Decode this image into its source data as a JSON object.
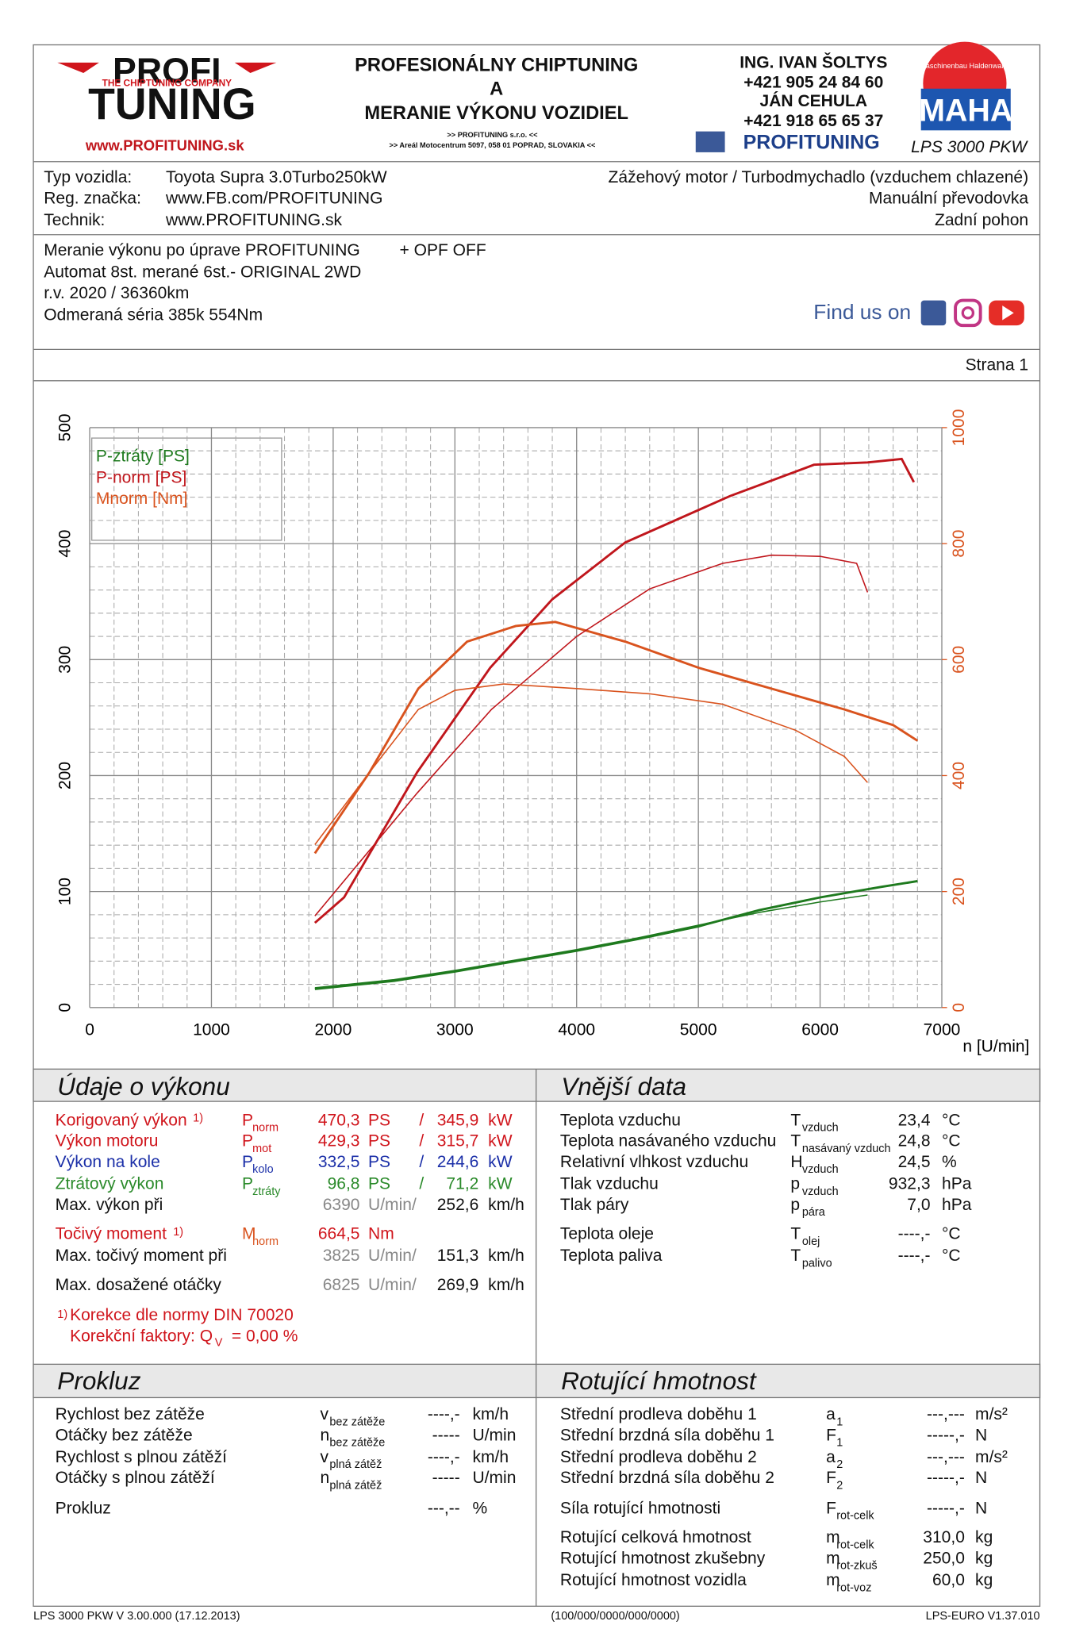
{
  "header": {
    "logo_top": "PROFI",
    "logo_tagline": "THE CHIPTUNING COMPANY",
    "logo_bottom": "TUNING",
    "logo_url": "www.PROFITUNING.sk",
    "title": [
      "PROFESIONÁLNY CHIPTUNING",
      "A",
      "MERANIE VÝKONU VOZIDIEL"
    ],
    "company": ">> PROFITUNING s.r.o. <<",
    "address": ">> Areál Motocentrum 5097, 058 01 POPRAD, SLOVAKIA <<",
    "contacts": [
      "ING. IVAN ŠOLTYS",
      "+421 905 24 84 60",
      "JÁN CEHULA",
      "+421 918 65 65 37"
    ],
    "facebook": "PROFITUNING",
    "maha_ring": "Maschinenbau Haldenwang",
    "maha": "MAHA",
    "model": "LPS 3000 PKW"
  },
  "vehicle": {
    "rows": [
      {
        "label": "Typ vozidla:",
        "value": "Toyota Supra 3.0Turbo250kW",
        "right": "Zážehový motor / Turbodmychadlo (vzduchem chlazené)"
      },
      {
        "label": "Reg. značka:",
        "value": "www.FB.com/PROFITUNING",
        "right": "Manuální převodovka"
      },
      {
        "label": "Technik:",
        "value": "www.PROFITUNING.sk",
        "right": "Zadní pohon"
      }
    ]
  },
  "notes": {
    "lines": [
      "Meranie výkonu po úprave PROFITUNING",
      "Automat 8st. merané 6st.- ORIGINAL 2WD",
      "r.v. 2020 / 36360km",
      "Odmeraná séria 385k 554Nm"
    ],
    "extra": "+ OPF OFF",
    "find_us": "Find us on"
  },
  "page_label": "Strana 1",
  "chart_data": {
    "type": "line",
    "xlabel": "n [U/min]",
    "xlim": [
      0,
      7000
    ],
    "xticks": [
      0,
      1000,
      2000,
      3000,
      4000,
      5000,
      6000,
      7000
    ],
    "ylim": [
      0,
      500
    ],
    "yticks": [
      0,
      100,
      200,
      300,
      400,
      500
    ],
    "y2lim": [
      0,
      1000
    ],
    "y2ticks": [
      0,
      200,
      400,
      600,
      800,
      1000
    ],
    "y2color": "#d9531e",
    "grid": true,
    "series": [
      {
        "name": "P-ztráty [PS]",
        "color": "#1e7a1e",
        "linewidth": 2.2,
        "x": [
          1850,
          2500,
          3000,
          3500,
          4000,
          4500,
          5000,
          5500,
          6000,
          6500,
          6800
        ],
        "values": [
          16,
          23,
          31,
          40,
          49,
          59,
          70,
          84,
          95,
          104,
          109
        ]
      },
      {
        "name": "P-norm [PS]",
        "color": "#c0161c",
        "linewidth": 2.2,
        "x": [
          1850,
          2090,
          2690,
          3290,
          3800,
          4400,
          5260,
          5950,
          6390,
          6670,
          6770
        ],
        "values": [
          73,
          95,
          203,
          293,
          352,
          401,
          441,
          468,
          470,
          473,
          453
        ]
      },
      {
        "name": "Mnorm [Nm]",
        "color": "#d9531e",
        "axis": "y2",
        "linewidth": 2.2,
        "x": [
          1850,
          2300,
          2700,
          3100,
          3500,
          3825,
          4400,
          5000,
          5600,
          6200,
          6600,
          6800
        ],
        "values": [
          266,
          406,
          550,
          631,
          658,
          665,
          631,
          586,
          550,
          514,
          487,
          460
        ]
      },
      {
        "color": "#1e7a1e",
        "linewidth": 1.2,
        "x": [
          1850,
          2500,
          3000,
          3500,
          4000,
          4500,
          5000,
          5500,
          6000,
          6390
        ],
        "values": [
          17,
          24,
          32,
          41,
          50,
          60,
          71,
          82,
          91,
          97
        ]
      },
      {
        "color": "#c0161c",
        "linewidth": 1.2,
        "x": [
          1850,
          2690,
          3300,
          4000,
          4600,
          5200,
          5600,
          6000,
          6300,
          6390
        ],
        "values": [
          79,
          185,
          257,
          320,
          361,
          383,
          390,
          389,
          383,
          358
        ]
      },
      {
        "color": "#d9531e",
        "axis": "y2",
        "linewidth": 1.2,
        "x": [
          1850,
          2300,
          2700,
          3000,
          3400,
          4000,
          4600,
          5200,
          5800,
          6200,
          6390
        ],
        "values": [
          281,
          406,
          514,
          547,
          558,
          550,
          541,
          523,
          478,
          433,
          388
        ]
      }
    ]
  },
  "performance": {
    "title": "Údaje o výkonu",
    "rows": [
      {
        "label": "Korigovaný výkon",
        "note": "1)",
        "sym": "P",
        "sub": "norm",
        "v1": "470,3",
        "u1": "PS",
        "sep": "/",
        "v2": "345,9",
        "u2": "kW",
        "color": "#d0151c"
      },
      {
        "label": "Výkon motoru",
        "sym": "P",
        "sub": "mot",
        "v1": "429,3",
        "u1": "PS",
        "sep": "/",
        "v2": "315,7",
        "u2": "kW",
        "color": "#d0151c"
      },
      {
        "label": "Výkon na kole",
        "sym": "P",
        "sub": "kolo",
        "v1": "332,5",
        "u1": "PS",
        "sep": "/",
        "v2": "244,6",
        "u2": "kW",
        "color": "#1b2fa8"
      },
      {
        "label": "Ztrátový výkon",
        "sym": "P",
        "sub": "ztráty",
        "v1": "96,8",
        "u1": "PS",
        "sep": "/",
        "v2": "71,2",
        "u2": "kW",
        "color": "#2a8a2a"
      },
      {
        "label": "Max. výkon při",
        "v1": "6390",
        "u1": "U/min/",
        "v2": "252,6",
        "u2": "km/h",
        "color": "#111111"
      },
      {
        "label": "Točivý moment",
        "note": "1)",
        "sym": "M",
        "sub": "norm",
        "v1": "664,5",
        "u1": "Nm",
        "color": "#d0151c"
      },
      {
        "label": "Max. točivý moment při",
        "v1": "3825",
        "u1": "U/min/",
        "v2": "151,3",
        "u2": "km/h",
        "color": "#111111"
      },
      {
        "label": "Max. dosažené otáčky",
        "v1": "6825",
        "u1": "U/min/",
        "v2": "269,9",
        "u2": "km/h",
        "color": "#111111"
      }
    ],
    "footnote_mark": "1)",
    "footnote": "Korekce dle normy DIN 70020",
    "factor_label": "Korekční faktory: Q",
    "factor_sub": "V",
    "factor_value": "=   0,00 %"
  },
  "ambient": {
    "title": "Vnější data",
    "rows": [
      {
        "label": "Teplota vzduchu",
        "sym": "T",
        "sub": "vzduch",
        "value": "23,4",
        "unit": "°C"
      },
      {
        "label": "Teplota nasávaného vzduchu",
        "sym": "T",
        "sub": "nasávaný vzduch",
        "value": "24,8",
        "unit": "°C"
      },
      {
        "label": "Relativní vlhkost vzduchu",
        "sym": "H",
        "sub": "vzduch",
        "value": "24,5",
        "unit": "%"
      },
      {
        "label": "Tlak vzduchu",
        "sym": "p",
        "sub": "vzduch",
        "value": "932,3",
        "unit": "hPa"
      },
      {
        "label": "Tlak páry",
        "sym": "p",
        "sub": "pára",
        "value": "7,0",
        "unit": "hPa"
      },
      {
        "label": "Teplota oleje",
        "sym": "T",
        "sub": "olej",
        "value": "----,-",
        "unit": "°C"
      },
      {
        "label": "Teplota paliva",
        "sym": "T",
        "sub": "palivo",
        "value": "----,-",
        "unit": "°C"
      }
    ]
  },
  "slip": {
    "title": "Prokluz",
    "rows": [
      {
        "label": "Rychlost bez zátěže",
        "sym": "v",
        "sub": "bez zátěže",
        "value": "----,-",
        "unit": "km/h"
      },
      {
        "label": "Otáčky bez zátěže",
        "sym": "n",
        "sub": "bez zátěže",
        "value": "-----",
        "unit": "U/min"
      },
      {
        "label": "Rychlost s plnou zátěží",
        "sym": "v",
        "sub": "plná zátěž",
        "value": "----,-",
        "unit": "km/h"
      },
      {
        "label": "Otáčky s plnou zátěží",
        "sym": "n",
        "sub": "plná zátěž",
        "value": "-----",
        "unit": "U/min"
      },
      {
        "label": "Prokluz",
        "value": "---,--",
        "unit": "%"
      }
    ]
  },
  "rotating": {
    "title": "Rotující hmotnost",
    "rows": [
      {
        "label": "Střední prodleva doběhu 1",
        "sym": "a",
        "sub": "1",
        "value": "---,---",
        "unit": "m/s²"
      },
      {
        "label": "Střední brzdná síla doběhu 1",
        "sym": "F",
        "sub": "1",
        "value": "-----,-",
        "unit": "N"
      },
      {
        "label": "Střední prodleva doběhu 2",
        "sym": "a",
        "sub": "2",
        "value": "---,---",
        "unit": "m/s²"
      },
      {
        "label": "Střední brzdná síla doběhu 2",
        "sym": "F",
        "sub": "2",
        "value": "-----,-",
        "unit": "N"
      },
      {
        "label": "Síla rotující hmotnosti",
        "sym": "F",
        "sub": "rot-celk",
        "value": "-----,-",
        "unit": "N"
      },
      {
        "label": "Rotující celková hmotnost",
        "sym": "m",
        "sub": "rot-celk",
        "value": "310,0",
        "unit": "kg"
      },
      {
        "label": "Rotující hmotnost zkušebny",
        "sym": "m",
        "sub": "rot-zkuš",
        "value": "250,0",
        "unit": "kg"
      },
      {
        "label": "Rotující hmotnost vozidla",
        "sym": "m",
        "sub": "rot-voz",
        "value": "60,0",
        "unit": "kg"
      }
    ]
  },
  "footer": {
    "left": "LPS 3000 PKW V 3.00.000 (17.12.2013)",
    "center": "(100/000/0000/000/0000)",
    "right": "LPS-EURO V1.37.010"
  }
}
